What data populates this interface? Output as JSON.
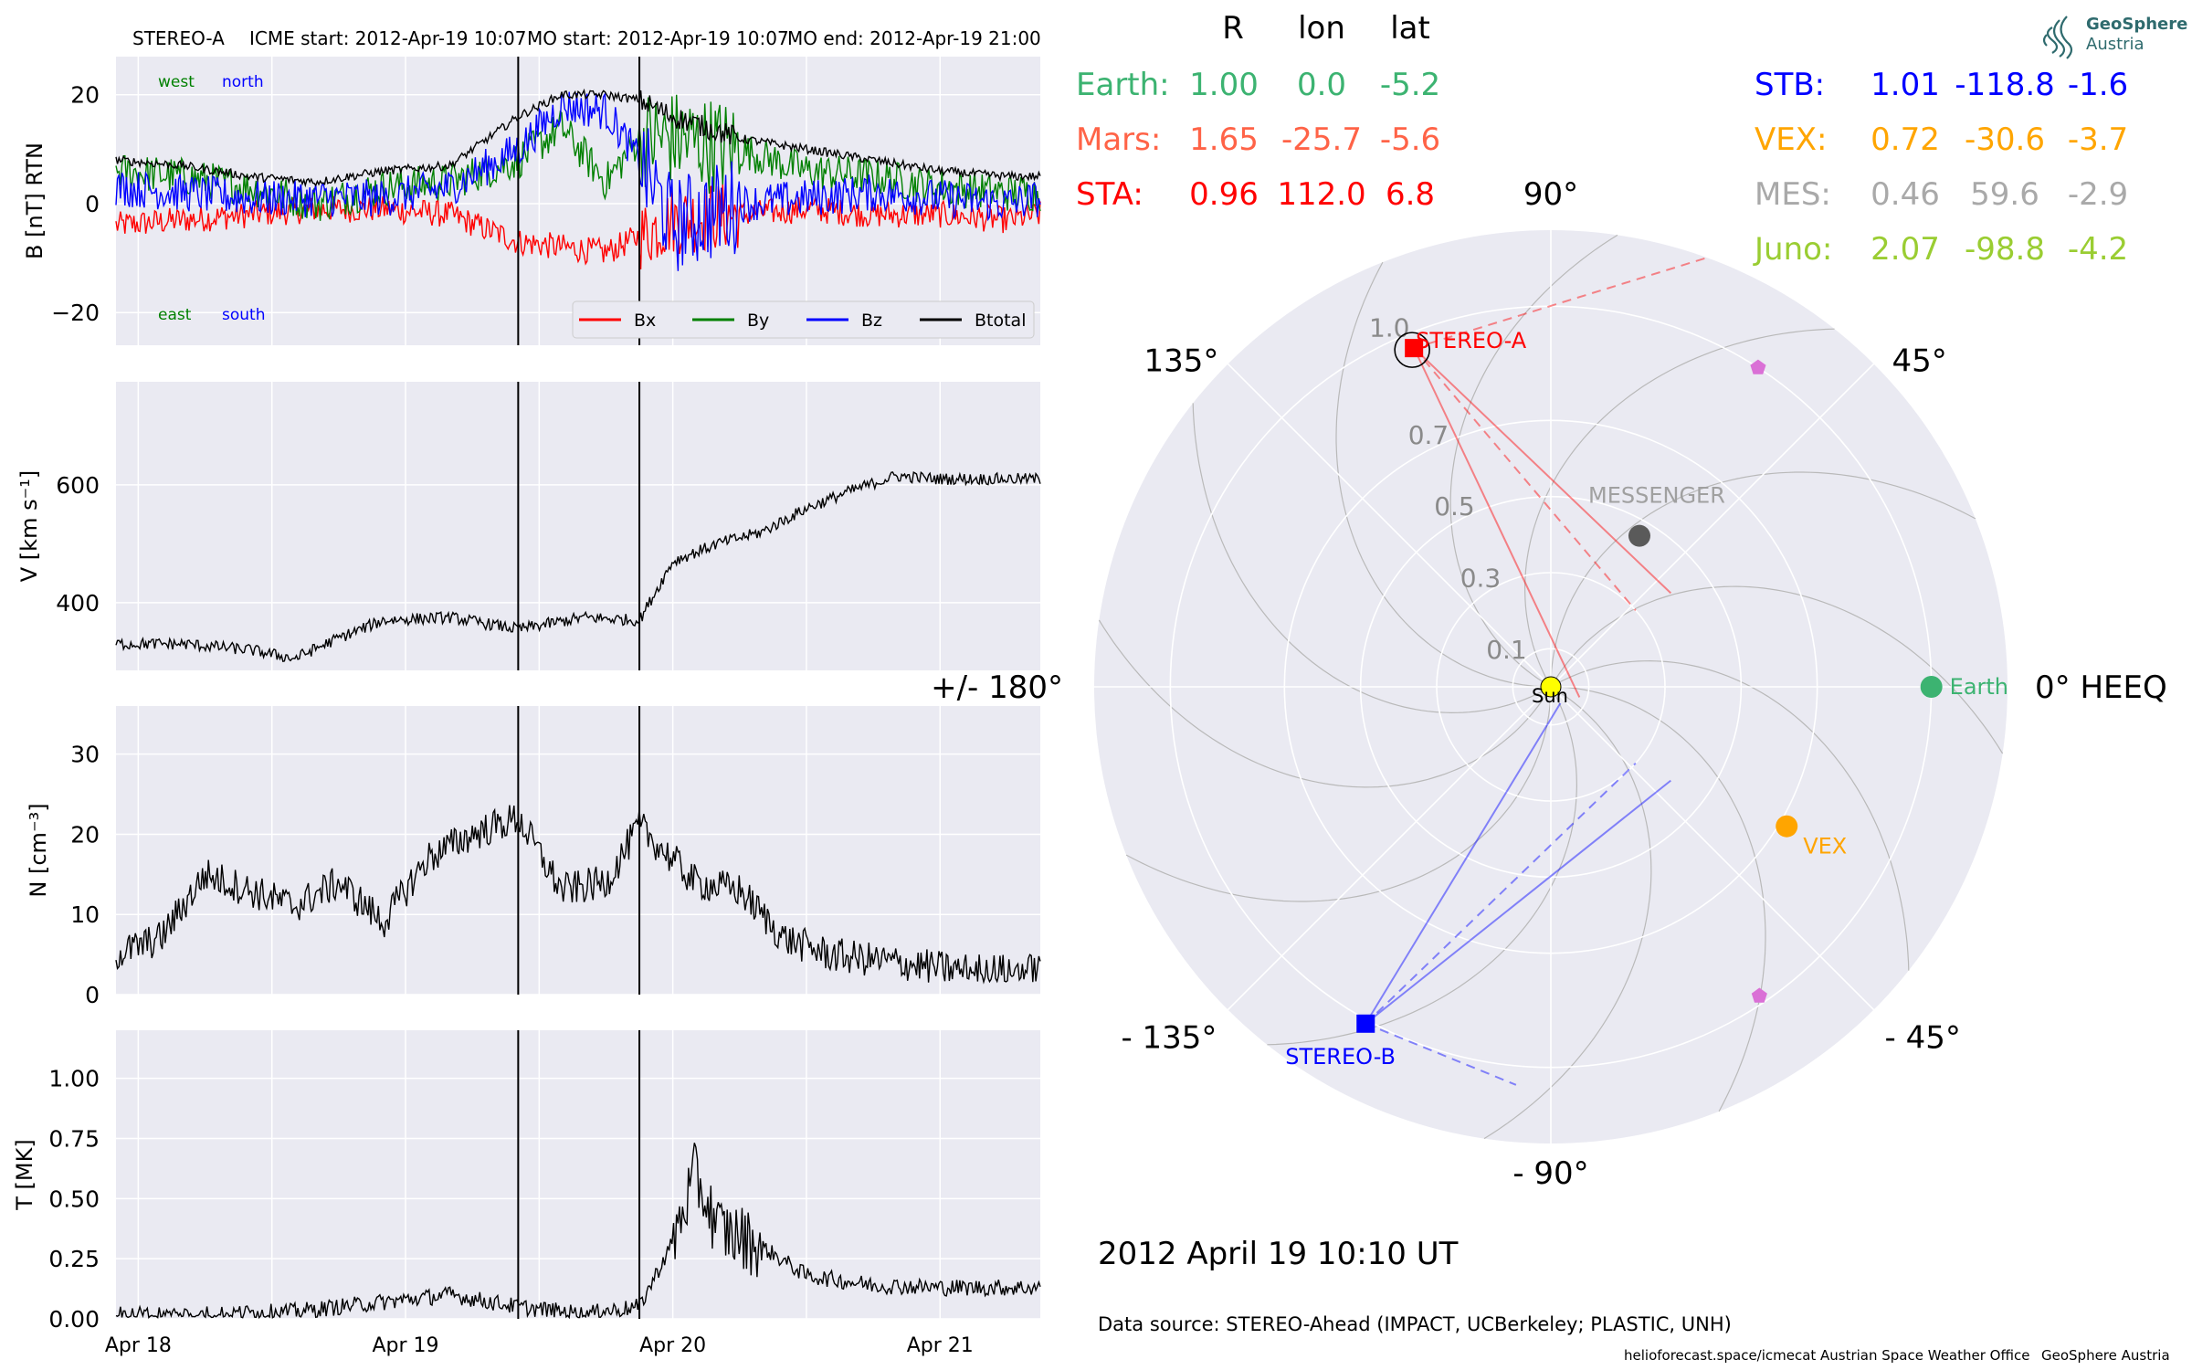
{
  "header": {
    "spacecraft": "STEREO-A",
    "icme_start": "ICME start: 2012-Apr-19 10:07",
    "mo_start": "MO start: 2012-Apr-19 10:07",
    "mo_end": "MO end: 2012-Apr-19 21:00"
  },
  "logo": {
    "line1": "GeoSphere",
    "line2": "Austria"
  },
  "positions": {
    "columns": [
      "R",
      "lon",
      "lat"
    ],
    "rows": [
      {
        "label": "Earth:",
        "R": "1.00",
        "lon": "0.0",
        "lat": "-5.2",
        "color": "#3cb371"
      },
      {
        "label": "Mars:",
        "R": "1.65",
        "lon": "-25.7",
        "lat": "-5.6",
        "color": "#ff6347"
      },
      {
        "label": "STA:",
        "R": "0.96",
        "lon": "112.0",
        "lat": "6.8",
        "color": "#ff0000"
      },
      {
        "label": "STB:",
        "R": "1.01",
        "lon": "-118.8",
        "lat": "-1.6",
        "color": "#0000ff"
      },
      {
        "label": "VEX:",
        "R": "0.72",
        "lon": "-30.6",
        "lat": "-3.7",
        "color": "#ffa500"
      },
      {
        "label": "MES:",
        "R": "0.46",
        "lon": "59.6",
        "lat": "-2.9",
        "color": "#a9a9a9"
      },
      {
        "label": "Juno:",
        "R": "2.07",
        "lon": "-98.8",
        "lat": "-4.2",
        "color": "#9acd32"
      }
    ]
  },
  "datetime": "2012 April 19  10:10 UT",
  "data_source": "Data source: STEREO-Ahead (IMPACT, UCBerkeley; PLASTIC, UNH)",
  "footer": {
    "site": "helioforecast.space/icmecat",
    "office": "Austrian Space Weather Office",
    "org": "GeoSphere Austria"
  },
  "colors": {
    "panel_bg": "#eaeaf2",
    "grid": "#ffffff",
    "bx": "#ff0000",
    "by": "#008000",
    "bz": "#0000ff",
    "btotal": "#000000",
    "sta": "#ff0000",
    "stb": "#0000ff",
    "earth": "#3cb371",
    "vex": "#ffa500",
    "messenger": "#5a5a5a",
    "messenger_label": "#a0a0a0",
    "sun": "#ffff00",
    "juno_marker": "#da70d6"
  },
  "chart_data": [
    {
      "type": "line",
      "ylabel": "B [nT] RTN",
      "ylim": [
        -26,
        27
      ],
      "yticks": [
        -20,
        0,
        20
      ],
      "x_range": [
        "2012-04-17 22:00",
        "2012-04-21 09:00"
      ],
      "annotations_top": [
        "west",
        "north"
      ],
      "annotations_bottom": [
        "east",
        "south"
      ],
      "legend": [
        "Bx",
        "By",
        "Bz",
        "Btotal"
      ],
      "legend_position": "lower right",
      "event_lines": [
        "2012-04-19 10:07",
        "2012-04-19 21:00"
      ],
      "series": [
        {
          "name": "Bx",
          "x": [
            "2012-04-17 22:00",
            "2012-04-18 04:00",
            "2012-04-18 10:00",
            "2012-04-18 16:00",
            "2012-04-18 22:00",
            "2012-04-19 04:00",
            "2012-04-19 10:07",
            "2012-04-19 14:00",
            "2012-04-19 18:00",
            "2012-04-19 21:00",
            "2012-04-20 00:00",
            "2012-04-20 06:00",
            "2012-04-20 12:00",
            "2012-04-20 18:00",
            "2012-04-21 00:00",
            "2012-04-21 06:00",
            "2012-04-21 09:00"
          ],
          "values": [
            -4,
            -3,
            -2,
            -1,
            -1,
            -2,
            -7,
            -8,
            -9,
            -6,
            -3,
            -2,
            -1,
            -2,
            -2,
            -3,
            -2
          ]
        },
        {
          "name": "By",
          "x": [
            "2012-04-17 22:00",
            "2012-04-18 04:00",
            "2012-04-18 10:00",
            "2012-04-18 16:00",
            "2012-04-18 22:00",
            "2012-04-19 04:00",
            "2012-04-19 10:07",
            "2012-04-19 14:00",
            "2012-04-19 18:00",
            "2012-04-19 21:00",
            "2012-04-20 00:00",
            "2012-04-20 06:00",
            "2012-04-20 12:00",
            "2012-04-20 18:00",
            "2012-04-21 00:00",
            "2012-04-21 06:00",
            "2012-04-21 09:00"
          ],
          "values": [
            6,
            5,
            3,
            0,
            3,
            4,
            8,
            14,
            4,
            12,
            12,
            10,
            6,
            5,
            3,
            2,
            2
          ]
        },
        {
          "name": "Bz",
          "x": [
            "2012-04-17 22:00",
            "2012-04-18 04:00",
            "2012-04-18 10:00",
            "2012-04-18 16:00",
            "2012-04-18 22:00",
            "2012-04-19 04:00",
            "2012-04-19 10:07",
            "2012-04-19 14:00",
            "2012-04-19 18:00",
            "2012-04-19 21:00",
            "2012-04-20 00:00",
            "2012-04-20 06:00",
            "2012-04-20 12:00",
            "2012-04-20 18:00",
            "2012-04-21 00:00",
            "2012-04-21 06:00",
            "2012-04-21 09:00"
          ],
          "values": [
            3,
            2,
            1,
            1,
            1,
            3,
            10,
            18,
            17,
            8,
            -4,
            0,
            1,
            2,
            1,
            0,
            1
          ]
        },
        {
          "name": "Btotal",
          "x": [
            "2012-04-17 22:00",
            "2012-04-18 04:00",
            "2012-04-18 10:00",
            "2012-04-18 16:00",
            "2012-04-18 22:00",
            "2012-04-19 04:00",
            "2012-04-19 10:07",
            "2012-04-19 14:00",
            "2012-04-19 18:00",
            "2012-04-19 21:00",
            "2012-04-20 00:00",
            "2012-04-20 06:00",
            "2012-04-20 12:00",
            "2012-04-20 18:00",
            "2012-04-21 00:00",
            "2012-04-21 06:00",
            "2012-04-21 09:00"
          ],
          "values": [
            8,
            7,
            5,
            4,
            6,
            7,
            16,
            20,
            20,
            19,
            16,
            12,
            10,
            8,
            6,
            5,
            5
          ]
        }
      ]
    },
    {
      "type": "line",
      "ylabel": "V [km s⁻¹]",
      "ylim": [
        285,
        775
      ],
      "yticks": [
        400,
        600
      ],
      "event_lines": [
        "2012-04-19 10:07",
        "2012-04-19 21:00"
      ],
      "series": [
        {
          "name": "V",
          "x": [
            "2012-04-17 22:00",
            "2012-04-18 04:00",
            "2012-04-18 10:00",
            "2012-04-18 14:00",
            "2012-04-18 18:00",
            "2012-04-18 22:00",
            "2012-04-19 04:00",
            "2012-04-19 10:07",
            "2012-04-19 16:00",
            "2012-04-19 21:00",
            "2012-04-20 00:00",
            "2012-04-20 04:00",
            "2012-04-20 08:00",
            "2012-04-20 12:00",
            "2012-04-20 16:00",
            "2012-04-20 20:00",
            "2012-04-21 00:00",
            "2012-04-21 04:00",
            "2012-04-21 09:00"
          ],
          "values": [
            330,
            330,
            320,
            305,
            340,
            370,
            375,
            355,
            375,
            370,
            470,
            500,
            520,
            560,
            590,
            615,
            610,
            610,
            610
          ]
        }
      ]
    },
    {
      "type": "line",
      "ylabel": "N [cm⁻³]",
      "ylim": [
        0,
        36
      ],
      "yticks": [
        0,
        10,
        20,
        30
      ],
      "event_lines": [
        "2012-04-19 10:07",
        "2012-04-19 21:00"
      ],
      "series": [
        {
          "name": "N",
          "x": [
            "2012-04-17 22:00",
            "2012-04-18 02:00",
            "2012-04-18 06:00",
            "2012-04-18 10:00",
            "2012-04-18 14:00",
            "2012-04-18 18:00",
            "2012-04-18 22:00",
            "2012-04-19 02:00",
            "2012-04-19 06:00",
            "2012-04-19 10:07",
            "2012-04-19 14:00",
            "2012-04-19 18:00",
            "2012-04-19 21:00",
            "2012-04-20 02:00",
            "2012-04-20 06:00",
            "2012-04-20 10:00",
            "2012-04-20 14:00",
            "2012-04-20 20:00",
            "2012-04-21 02:00",
            "2012-04-21 09:00"
          ],
          "values": [
            5,
            7,
            15,
            13,
            11,
            14,
            9,
            17,
            20,
            22,
            13,
            14,
            21,
            14,
            13,
            7,
            5,
            4,
            3,
            3
          ]
        }
      ]
    },
    {
      "type": "line",
      "ylabel": "T [MK]",
      "ylim": [
        0,
        1.2
      ],
      "yticks": [
        0.0,
        0.25,
        0.5,
        0.75,
        1.0
      ],
      "xticks": [
        "Apr 18",
        "Apr 19",
        "Apr 20",
        "Apr 21"
      ],
      "event_lines": [
        "2012-04-19 10:07",
        "2012-04-19 21:00"
      ],
      "series": [
        {
          "name": "T",
          "x": [
            "2012-04-17 22:00",
            "2012-04-18 06:00",
            "2012-04-18 14:00",
            "2012-04-18 22:00",
            "2012-04-19 04:00",
            "2012-04-19 10:07",
            "2012-04-19 16:00",
            "2012-04-19 21:00",
            "2012-04-20 00:00",
            "2012-04-20 02:00",
            "2012-04-20 04:00",
            "2012-04-20 08:00",
            "2012-04-20 12:00",
            "2012-04-20 18:00",
            "2012-04-21 00:00",
            "2012-04-21 09:00"
          ],
          "values": [
            0.02,
            0.02,
            0.03,
            0.07,
            0.1,
            0.05,
            0.02,
            0.05,
            0.32,
            0.6,
            0.38,
            0.3,
            0.18,
            0.14,
            0.13,
            0.13
          ]
        }
      ]
    },
    {
      "type": "polar",
      "angle_labels": [
        "90°",
        "45°",
        "0° HEEQ",
        "- 45°",
        "- 90°",
        "- 135°",
        "+/- 180°",
        "135°"
      ],
      "radial_ticks": [
        "0.1",
        "0.3",
        "0.5",
        "0.7",
        "1.0"
      ],
      "rmax": 1.2,
      "objects": [
        {
          "name": "STEREO-A",
          "r": 0.96,
          "lon": 112.0,
          "marker": "square",
          "color": "#ff0000",
          "label": "STEREO-A"
        },
        {
          "name": "STEREO-B",
          "r": 1.01,
          "lon": -118.8,
          "marker": "square",
          "color": "#0000ff",
          "label": "STEREO-B"
        },
        {
          "name": "Earth",
          "r": 1.0,
          "lon": 0.0,
          "marker": "circle",
          "color": "#3cb371",
          "label": "Earth"
        },
        {
          "name": "VEX",
          "r": 0.72,
          "lon": -30.6,
          "marker": "circle",
          "color": "#ffa500",
          "label": "VEX"
        },
        {
          "name": "MESSENGER",
          "r": 0.46,
          "lon": 59.6,
          "marker": "circle",
          "color": "#5a5a5a",
          "label": "MESSENGER"
        },
        {
          "name": "Sun",
          "r": 0.0,
          "lon": 0.0,
          "marker": "circle",
          "color": "#ffff00",
          "label": "Sun"
        },
        {
          "name": "pentagon-1",
          "r": 1.0,
          "lon": 57.0,
          "marker": "pentagon",
          "color": "#da70d6",
          "label": ""
        },
        {
          "name": "pentagon-2",
          "r": 0.98,
          "lon": -56.0,
          "marker": "pentagon",
          "color": "#da70d6",
          "label": ""
        }
      ]
    }
  ]
}
